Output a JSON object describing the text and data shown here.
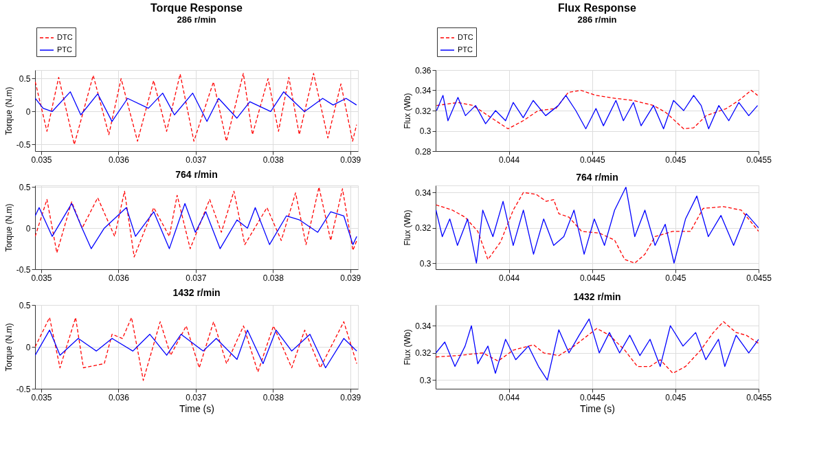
{
  "chart_data": [
    {
      "type": "line",
      "title": "Torque Response",
      "subtitle": "286 r/min",
      "ylabel": "Torque (N.m)",
      "xlim": [
        0.03492,
        0.0391
      ],
      "xticks": [
        0.035,
        0.036,
        0.037,
        0.038,
        0.039
      ],
      "ylim": [
        -0.6,
        0.63
      ],
      "yticks": [
        -0.5,
        0,
        0.5
      ],
      "grid": true,
      "legend": "top left",
      "series": [
        {
          "name": "DTC",
          "color": "#ff0000",
          "line_style": "dashed",
          "x": [
            0.034923,
            0.035074,
            0.035226,
            0.035428,
            0.035673,
            0.035875,
            0.036034,
            0.036246,
            0.036455,
            0.036623,
            0.036798,
            0.036976,
            0.037229,
            0.037397,
            0.037616,
            0.037734,
            0.037936,
            0.038071,
            0.038205,
            0.03834,
            0.038525,
            0.03871,
            0.038879,
            0.03903,
            0.039081
          ],
          "values": [
            0.45,
            -0.3,
            0.52,
            -0.5,
            0.55,
            -0.35,
            0.5,
            -0.45,
            0.47,
            -0.3,
            0.57,
            -0.45,
            0.45,
            -0.45,
            0.58,
            -0.35,
            0.5,
            -0.3,
            0.52,
            -0.35,
            0.58,
            -0.4,
            0.42,
            -0.45,
            -0.2
          ]
        },
        {
          "name": "PTC",
          "color": "#0000ff",
          "line_style": "solid",
          "x": [
            0.034923,
            0.035024,
            0.035141,
            0.035377,
            0.035512,
            0.035731,
            0.035916,
            0.036118,
            0.036387,
            0.036572,
            0.036724,
            0.03696,
            0.037145,
            0.037296,
            0.037532,
            0.0377,
            0.03797,
            0.038138,
            0.038407,
            0.038643,
            0.038778,
            0.038946,
            0.039081
          ],
          "values": [
            0.2,
            0.05,
            0.0,
            0.3,
            -0.05,
            0.27,
            -0.15,
            0.2,
            0.05,
            0.28,
            -0.05,
            0.28,
            -0.15,
            0.2,
            -0.1,
            0.15,
            0.0,
            0.3,
            0.0,
            0.2,
            0.1,
            0.2,
            0.1
          ]
        }
      ]
    },
    {
      "type": "line",
      "title": "Flux Response",
      "subtitle": "286 r/min",
      "ylabel": "Flux (Wb)",
      "xlim": [
        0.04356,
        0.0455
      ],
      "xticks": [
        0.044,
        0.0445,
        0.045,
        0.0455
      ],
      "ylim": [
        0.28,
        0.36
      ],
      "yticks": [
        0.28,
        0.3,
        0.32,
        0.34,
        0.36
      ],
      "grid": true,
      "legend": "top left",
      "series": [
        {
          "name": "DTC",
          "color": "#ff0000",
          "line_style": "dashed",
          "x": [
            0.043566,
            0.043694,
            0.043785,
            0.043875,
            0.043995,
            0.044086,
            0.044176,
            0.044282,
            0.044357,
            0.044432,
            0.044523,
            0.044643,
            0.044748,
            0.044869,
            0.044944,
            0.04505,
            0.04511,
            0.045185,
            0.045306,
            0.045381,
            0.045456,
            0.045494
          ],
          "values": [
            0.325,
            0.328,
            0.325,
            0.315,
            0.302,
            0.31,
            0.32,
            0.322,
            0.338,
            0.34,
            0.335,
            0.332,
            0.33,
            0.325,
            0.318,
            0.302,
            0.303,
            0.315,
            0.322,
            0.33,
            0.34,
            0.335
          ]
        },
        {
          "name": "PTC",
          "color": "#0000ff",
          "line_style": "solid",
          "x": [
            0.043566,
            0.043604,
            0.043634,
            0.043694,
            0.043739,
            0.0438,
            0.04386,
            0.04392,
            0.04398,
            0.044026,
            0.044086,
            0.044146,
            0.044221,
            0.044297,
            0.044342,
            0.044402,
            0.044462,
            0.044523,
            0.044568,
            0.044643,
            0.044688,
            0.044748,
            0.044794,
            0.044869,
            0.044929,
            0.044989,
            0.04505,
            0.04511,
            0.045155,
            0.0452,
            0.045261,
            0.045321,
            0.045381,
            0.045441,
            0.045494
          ],
          "values": [
            0.32,
            0.335,
            0.31,
            0.333,
            0.315,
            0.325,
            0.307,
            0.32,
            0.31,
            0.328,
            0.313,
            0.33,
            0.315,
            0.325,
            0.335,
            0.32,
            0.302,
            0.322,
            0.305,
            0.33,
            0.31,
            0.328,
            0.305,
            0.325,
            0.302,
            0.33,
            0.32,
            0.335,
            0.325,
            0.302,
            0.325,
            0.31,
            0.328,
            0.315,
            0.325
          ]
        }
      ]
    },
    {
      "type": "line",
      "title": "764 r/min",
      "ylabel": "Torque (N.m)",
      "xlim": [
        0.03492,
        0.0391
      ],
      "xticks": [
        0.035,
        0.036,
        0.037,
        0.038,
        0.039
      ],
      "ylim": [
        -0.5,
        0.52
      ],
      "yticks": [
        -0.5,
        0,
        0.5
      ],
      "grid": true,
      "series": [
        {
          "color": "#ff0000",
          "line_style": "dashed",
          "x": [
            0.034922,
            0.035074,
            0.035202,
            0.035394,
            0.035529,
            0.035731,
            0.03595,
            0.036078,
            0.036203,
            0.036456,
            0.036658,
            0.036759,
            0.036928,
            0.03718,
            0.037332,
            0.037494,
            0.037635,
            0.037922,
            0.038107,
            0.038292,
            0.038427,
            0.038595,
            0.038747,
            0.038899,
            0.039034,
            0.039084
          ],
          "values": [
            -0.1,
            0.35,
            -0.3,
            0.32,
            0.0,
            0.37,
            -0.1,
            0.45,
            -0.35,
            0.25,
            -0.1,
            0.4,
            -0.25,
            0.35,
            -0.05,
            0.45,
            -0.2,
            0.25,
            -0.15,
            0.43,
            -0.2,
            0.5,
            -0.15,
            0.48,
            -0.27,
            -0.15
          ]
        },
        {
          "color": "#0000ff",
          "line_style": "solid",
          "x": [
            0.034922,
            0.034973,
            0.035142,
            0.035394,
            0.035529,
            0.035647,
            0.035816,
            0.036102,
            0.03622,
            0.036456,
            0.036658,
            0.03686,
            0.036995,
            0.03713,
            0.037315,
            0.037534,
            0.037669,
            0.03777,
            0.037955,
            0.038174,
            0.038343,
            0.038579,
            0.038747,
            0.038916,
            0.039034,
            0.039084
          ],
          "values": [
            0.15,
            0.25,
            -0.1,
            0.3,
            0.0,
            -0.25,
            0.0,
            0.25,
            -0.1,
            0.2,
            -0.25,
            0.3,
            -0.05,
            0.2,
            -0.25,
            0.1,
            0.0,
            0.25,
            -0.2,
            0.15,
            0.1,
            -0.05,
            0.2,
            0.15,
            -0.2,
            -0.1
          ]
        }
      ]
    },
    {
      "type": "line",
      "title": "764 r/min",
      "ylabel": "Flux (Wb)",
      "xlim": [
        0.04356,
        0.0455
      ],
      "xticks": [
        0.044,
        0.0445,
        0.045,
        0.0455
      ],
      "ylim": [
        0.2965,
        0.344
      ],
      "yticks": [
        0.3,
        0.32,
        0.34
      ],
      "grid": true,
      "series": [
        {
          "color": "#ff0000",
          "line_style": "dashed",
          "x": [
            0.043562,
            0.043661,
            0.043737,
            0.043813,
            0.043874,
            0.04395,
            0.044026,
            0.044087,
            0.044163,
            0.044224,
            0.044269,
            0.0443,
            0.044361,
            0.044437,
            0.044543,
            0.044635,
            0.044696,
            0.044756,
            0.044817,
            0.044878,
            0.044985,
            0.045091,
            0.045167,
            0.045289,
            0.045396,
            0.0455
          ],
          "values": [
            0.333,
            0.33,
            0.326,
            0.318,
            0.302,
            0.312,
            0.33,
            0.34,
            0.339,
            0.335,
            0.336,
            0.328,
            0.326,
            0.318,
            0.317,
            0.313,
            0.302,
            0.3,
            0.305,
            0.315,
            0.318,
            0.318,
            0.331,
            0.332,
            0.33,
            0.318
          ]
        },
        {
          "color": "#0000ff",
          "line_style": "solid",
          "x": [
            0.043562,
            0.0436,
            0.043645,
            0.043691,
            0.043752,
            0.043805,
            0.043843,
            0.043904,
            0.043965,
            0.044026,
            0.044087,
            0.044148,
            0.044209,
            0.044269,
            0.04433,
            0.044391,
            0.044452,
            0.044513,
            0.044574,
            0.044635,
            0.044703,
            0.044756,
            0.044817,
            0.044878,
            0.044939,
            0.044992,
            0.045061,
            0.045129,
            0.045198,
            0.045274,
            0.04535,
            0.045426,
            0.0455
          ],
          "values": [
            0.33,
            0.315,
            0.325,
            0.31,
            0.325,
            0.3,
            0.33,
            0.315,
            0.335,
            0.31,
            0.33,
            0.305,
            0.325,
            0.31,
            0.315,
            0.33,
            0.305,
            0.325,
            0.31,
            0.33,
            0.343,
            0.315,
            0.33,
            0.31,
            0.322,
            0.3,
            0.325,
            0.338,
            0.315,
            0.327,
            0.31,
            0.328,
            0.32
          ]
        }
      ]
    },
    {
      "type": "line",
      "title": "1432 r/min",
      "xlabel": "Time (s)",
      "ylabel": "Torque (N.m)",
      "xlim": [
        0.03492,
        0.0391
      ],
      "xticks": [
        0.035,
        0.036,
        0.037,
        0.038,
        0.039
      ],
      "ylim": [
        -0.5,
        0.5
      ],
      "yticks": [
        -0.5,
        0,
        0.5
      ],
      "grid": true,
      "series": [
        {
          "color": "#ff0000",
          "line_style": "dashed",
          "x": [
            0.034922,
            0.035108,
            0.035243,
            0.035445,
            0.035546,
            0.035816,
            0.035917,
            0.036051,
            0.036169,
            0.036321,
            0.03654,
            0.036675,
            0.036877,
            0.037045,
            0.037231,
            0.037399,
            0.037618,
            0.037804,
            0.038006,
            0.038242,
            0.03841,
            0.038612,
            0.038916,
            0.039084
          ],
          "values": [
            0.0,
            0.35,
            -0.25,
            0.35,
            -0.25,
            -0.2,
            0.15,
            0.1,
            0.35,
            -0.4,
            0.3,
            -0.1,
            0.25,
            -0.25,
            0.3,
            -0.2,
            0.25,
            -0.3,
            0.25,
            -0.25,
            0.2,
            -0.25,
            0.3,
            -0.2
          ]
        },
        {
          "color": "#0000ff",
          "line_style": "solid",
          "x": [
            0.034922,
            0.035108,
            0.035243,
            0.035479,
            0.035714,
            0.035917,
            0.036186,
            0.036405,
            0.036624,
            0.03681,
            0.037096,
            0.037265,
            0.037534,
            0.037669,
            0.037871,
            0.03804,
            0.038242,
            0.038478,
            0.03868,
            0.038916,
            0.039084
          ],
          "values": [
            -0.1,
            0.2,
            -0.1,
            0.1,
            -0.05,
            0.1,
            -0.05,
            0.15,
            -0.1,
            0.15,
            -0.05,
            0.1,
            -0.15,
            0.2,
            -0.2,
            0.2,
            -0.05,
            0.15,
            -0.25,
            0.1,
            -0.05
          ]
        }
      ]
    },
    {
      "type": "line",
      "title": "1432 r/min",
      "xlabel": "Time (s)",
      "ylabel": "Flux (Wb)",
      "xlim": [
        0.04356,
        0.0455
      ],
      "xticks": [
        0.044,
        0.0445,
        0.045,
        0.0455
      ],
      "ylim": [
        0.2936,
        0.3553
      ],
      "yticks": [
        0.3,
        0.32,
        0.34
      ],
      "grid": true,
      "series": [
        {
          "color": "#ff0000",
          "line_style": "dashed",
          "x": [
            0.043562,
            0.043691,
            0.043843,
            0.043935,
            0.044026,
            0.044148,
            0.044209,
            0.0443,
            0.044391,
            0.044528,
            0.044604,
            0.044696,
            0.044772,
            0.044848,
            0.044909,
            0.044985,
            0.045061,
            0.045152,
            0.045228,
            0.045289,
            0.045365,
            0.045426,
            0.0455
          ],
          "values": [
            0.317,
            0.318,
            0.32,
            0.314,
            0.322,
            0.326,
            0.32,
            0.318,
            0.325,
            0.338,
            0.333,
            0.322,
            0.31,
            0.31,
            0.315,
            0.305,
            0.31,
            0.322,
            0.335,
            0.343,
            0.335,
            0.333,
            0.327
          ]
        },
        {
          "color": "#0000ff",
          "line_style": "solid",
          "x": [
            0.043562,
            0.043615,
            0.043676,
            0.043737,
            0.043775,
            0.043813,
            0.043874,
            0.043919,
            0.04398,
            0.044041,
            0.044117,
            0.044178,
            0.044231,
            0.0443,
            0.044361,
            0.044422,
            0.044482,
            0.044543,
            0.044604,
            0.044665,
            0.044726,
            0.044787,
            0.044848,
            0.044909,
            0.04497,
            0.045046,
            0.045122,
            0.045183,
            0.045259,
            0.045297,
            0.045365,
            0.045441,
            0.0455
          ],
          "values": [
            0.32,
            0.328,
            0.31,
            0.325,
            0.34,
            0.312,
            0.325,
            0.305,
            0.33,
            0.315,
            0.325,
            0.31,
            0.3,
            0.337,
            0.32,
            0.333,
            0.345,
            0.32,
            0.335,
            0.32,
            0.333,
            0.318,
            0.33,
            0.31,
            0.34,
            0.325,
            0.335,
            0.315,
            0.33,
            0.31,
            0.333,
            0.32,
            0.33
          ]
        }
      ]
    }
  ]
}
